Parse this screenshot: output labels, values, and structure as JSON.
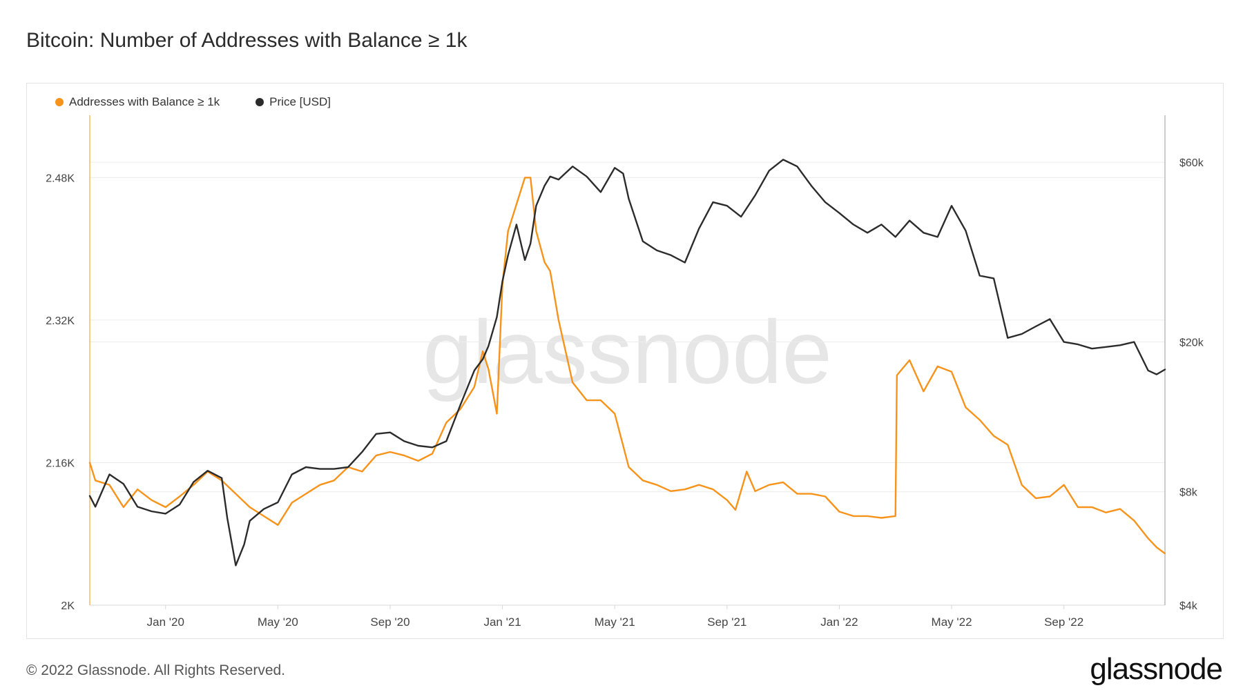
{
  "header": {
    "title": "Bitcoin: Number of Addresses with Balance ≥ 1k"
  },
  "footer": {
    "copyright": "© 2022 Glassnode. All Rights Reserved.",
    "logo": "glassnode"
  },
  "watermark": "glassnode",
  "colors": {
    "addresses": "#f7931a",
    "price": "#2b2b2b",
    "grid": "#ececec",
    "axis": "#d8d8d8",
    "watermark": "#e6e6e6"
  },
  "chart_data": {
    "type": "line",
    "title": "Bitcoin: Number of Addresses with Balance ≥ 1k",
    "legend_position": "top-left",
    "x_ticks": [
      "Jan '20",
      "May '20",
      "Sep '20",
      "Jan '21",
      "May '21",
      "Sep '21",
      "Jan '22",
      "May '22",
      "Sep '22"
    ],
    "x_tick_pos": [
      2,
      6,
      10,
      14,
      18,
      22,
      26,
      30,
      34
    ],
    "x_range": [
      -0.7,
      37.6
    ],
    "y_left": {
      "label": "Addresses with Balance ≥ 1k",
      "ticks": [
        "2K",
        "2.16K",
        "2.32K",
        "2.48K"
      ],
      "tick_values": [
        2000,
        2160,
        2320,
        2480
      ],
      "range": [
        2000,
        2550
      ]
    },
    "y_right": {
      "label": "Price [USD]",
      "scale": "log",
      "ticks": [
        "$4k",
        "$8k",
        "$20k",
        "$60k"
      ],
      "tick_values": [
        4000,
        8000,
        20000,
        60000
      ],
      "range": [
        4000,
        80000
      ]
    },
    "series": [
      {
        "name": "Addresses with Balance ≥ 1k",
        "axis": "left",
        "x": [
          -0.7,
          -0.5,
          0,
          0.5,
          1,
          1.5,
          2,
          2.5,
          3,
          3.5,
          4,
          4.5,
          5,
          5.5,
          6,
          6.5,
          7,
          7.5,
          8,
          8.5,
          9,
          9.5,
          10,
          10.5,
          11,
          11.5,
          12,
          12.5,
          13,
          13.3,
          13.5,
          13.8,
          14,
          14.2,
          14.5,
          14.8,
          15,
          15.2,
          15.5,
          15.7,
          16,
          16.5,
          17,
          17.5,
          18,
          18.5,
          19,
          19.5,
          20,
          20.5,
          21,
          21.5,
          22,
          22.3,
          22.7,
          23,
          23.5,
          24,
          24.5,
          25,
          25.5,
          26,
          26.5,
          27,
          27.5,
          28,
          28.05,
          28.5,
          29,
          29.5,
          30,
          30.5,
          31,
          31.5,
          32,
          32.5,
          33,
          33.5,
          34,
          34.5,
          35,
          35.5,
          36,
          36.5,
          37,
          37.3,
          37.6
        ],
        "values": [
          2160,
          2140,
          2135,
          2110,
          2130,
          2118,
          2110,
          2122,
          2135,
          2150,
          2140,
          2125,
          2110,
          2100,
          2090,
          2115,
          2125,
          2135,
          2140,
          2155,
          2150,
          2168,
          2172,
          2168,
          2162,
          2170,
          2205,
          2220,
          2245,
          2285,
          2265,
          2215,
          2360,
          2420,
          2450,
          2480,
          2480,
          2420,
          2385,
          2375,
          2320,
          2250,
          2230,
          2230,
          2215,
          2155,
          2140,
          2135,
          2128,
          2130,
          2135,
          2130,
          2118,
          2107,
          2150,
          2128,
          2135,
          2138,
          2125,
          2125,
          2122,
          2105,
          2100,
          2100,
          2098,
          2100,
          2258,
          2275,
          2240,
          2268,
          2262,
          2222,
          2208,
          2190,
          2180,
          2135,
          2120,
          2122,
          2135,
          2110,
          2110,
          2104,
          2108,
          2095,
          2075,
          2065,
          2058
        ]
      },
      {
        "name": "Price [USD]",
        "axis": "right",
        "x": [
          -0.7,
          -0.5,
          0,
          0.5,
          1,
          1.5,
          2,
          2.5,
          3,
          3.5,
          4,
          4.2,
          4.5,
          4.8,
          5,
          5.5,
          6,
          6.5,
          7,
          7.5,
          8,
          8.5,
          9,
          9.5,
          10,
          10.5,
          11,
          11.5,
          12,
          12.5,
          13,
          13.3,
          13.5,
          13.8,
          14,
          14.2,
          14.5,
          14.8,
          15,
          15.2,
          15.5,
          15.7,
          16,
          16.5,
          17,
          17.5,
          18,
          18.3,
          18.5,
          19,
          19.5,
          20,
          20.5,
          21,
          21.5,
          22,
          22.5,
          23,
          23.5,
          24,
          24.5,
          25,
          25.5,
          26,
          26.5,
          27,
          27.5,
          28,
          28.5,
          29,
          29.5,
          30,
          30.5,
          31,
          31.5,
          32,
          32.5,
          33,
          33.5,
          34,
          34.5,
          35,
          35.5,
          36,
          36.5,
          37,
          37.3,
          37.6
        ],
        "values": [
          7800,
          7300,
          8900,
          8400,
          7300,
          7100,
          7000,
          7400,
          8500,
          9100,
          8700,
          6800,
          5100,
          5800,
          6700,
          7200,
          7500,
          8900,
          9300,
          9200,
          9200,
          9300,
          10200,
          11400,
          11500,
          10900,
          10600,
          10500,
          10900,
          13600,
          16800,
          18000,
          19500,
          23300,
          29000,
          34000,
          41000,
          33000,
          36500,
          46000,
          52000,
          55000,
          54000,
          58500,
          55000,
          50000,
          58000,
          56000,
          48000,
          37000,
          35000,
          34000,
          32500,
          40000,
          47000,
          46000,
          43000,
          49000,
          57000,
          61000,
          58500,
          52000,
          47000,
          44000,
          41000,
          39000,
          41000,
          38000,
          42000,
          39000,
          38000,
          46000,
          39500,
          30000,
          29500,
          20500,
          21000,
          22000,
          23000,
          20000,
          19700,
          19200,
          19400,
          19600,
          20000,
          16800,
          16400,
          16900
        ]
      }
    ]
  }
}
